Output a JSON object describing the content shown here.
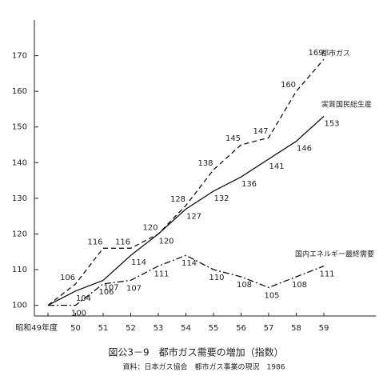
{
  "chart_data": {
    "type": "line",
    "title": "図公3－9　都市ガス需要の増加（指数）",
    "subtitle": "資料：日本ガス協会　都市ガス事業の現況　1986",
    "categories": [
      "昭和49年度",
      "50",
      "51",
      "52",
      "53",
      "54",
      "55",
      "56",
      "57",
      "58",
      "59"
    ],
    "series": [
      {
        "name": "都市ガス",
        "color": "#111111",
        "values": [
          100,
          106,
          116,
          116,
          120,
          128,
          138,
          145,
          147,
          160,
          169
        ]
      },
      {
        "name": "実質国民総生産",
        "color": "#111111",
        "values": [
          100,
          104,
          107,
          114,
          120,
          127,
          132,
          136,
          141,
          146,
          153
        ]
      },
      {
        "name": "国内エネルギー最終需要",
        "color": "#111111",
        "values": [
          100,
          100,
          106,
          107,
          111,
          114,
          110,
          108,
          105,
          108,
          111
        ]
      }
    ],
    "ylim": [
      97,
      180
    ],
    "yticks": [
      100,
      110,
      120,
      130,
      140,
      150,
      160,
      170
    ],
    "grid": false
  }
}
